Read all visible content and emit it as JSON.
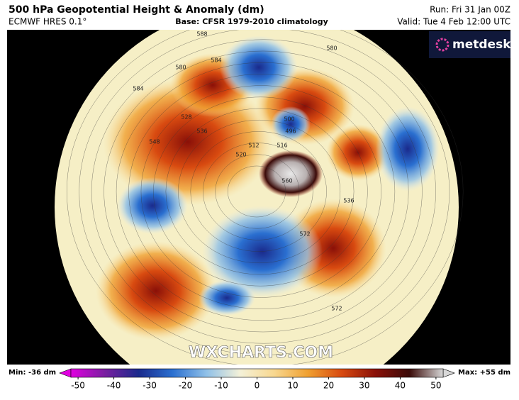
{
  "header": {
    "title": "500 hPa Geopotential Height & Anomaly (dm)",
    "model": "ECMWF HRES 0.1°",
    "base": "Base: CFSR 1979-2010 climatology",
    "run": "Run: Fri 31 Jan 00Z",
    "valid": "Valid: Tue 4 Feb 12:00 UTC"
  },
  "logo": "metdesk",
  "watermark": "WXCHARTS.COM",
  "map": {
    "contour_labels": [
      "584",
      "580",
      "584",
      "528",
      "548",
      "536",
      "520",
      "512",
      "516",
      "560",
      "500",
      "496",
      "580",
      "536",
      "572",
      "572",
      "588"
    ]
  },
  "colorbar": {
    "min_label": "Min: -36 dm",
    "max_label": "Max: +55 dm",
    "range": [
      -52,
      52
    ],
    "ticks": [
      -50,
      -40,
      -30,
      -20,
      -10,
      0,
      10,
      20,
      30,
      40,
      50
    ],
    "colors": [
      "#e000e0",
      "#7a1fa0",
      "#1a2a8c",
      "#2a6fd0",
      "#8fc0e8",
      "#f4f1d8",
      "#f8d890",
      "#f0a030",
      "#d84a10",
      "#8a1008",
      "#3a0a08",
      "#d8d8d8"
    ]
  }
}
